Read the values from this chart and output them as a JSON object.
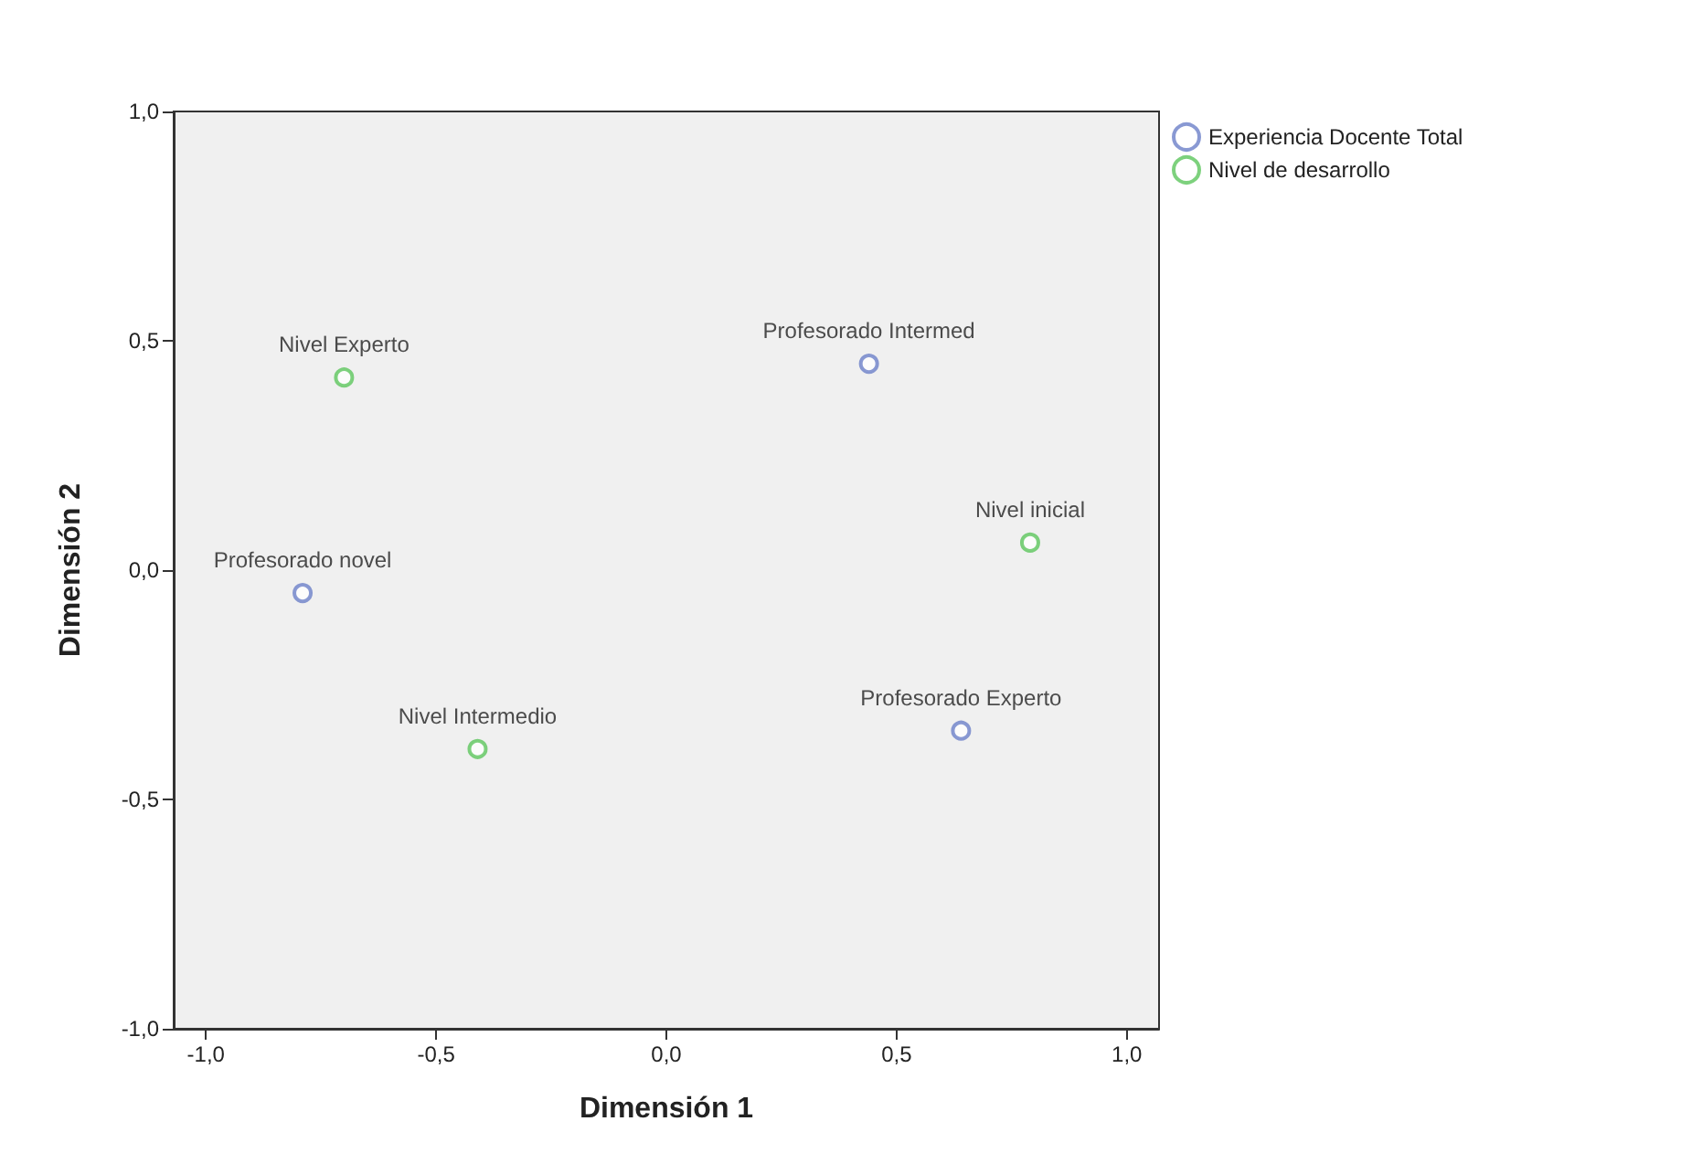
{
  "chart_data": {
    "type": "scatter",
    "xlabel": "Dimensión 1",
    "ylabel": "Dimensión 2",
    "xlim": [
      -1.07,
      1.07
    ],
    "ylim": [
      -1,
      1
    ],
    "xticks": [
      {
        "value": -1,
        "label": "-1,0"
      },
      {
        "value": -0.5,
        "label": "-0,5"
      },
      {
        "value": 0,
        "label": "0,0"
      },
      {
        "value": 0.5,
        "label": "0,5"
      },
      {
        "value": 1,
        "label": "1,0"
      }
    ],
    "yticks": [
      {
        "value": -1,
        "label": "-1,0"
      },
      {
        "value": -0.5,
        "label": "-0,5"
      },
      {
        "value": 0,
        "label": "0,0"
      },
      {
        "value": 0.5,
        "label": "0,5"
      },
      {
        "value": 1,
        "label": "1,0"
      }
    ],
    "series": [
      {
        "name": "Experiencia Docente Total",
        "color": "#6b7fc8",
        "x": [
          -0.79,
          0.44,
          0.64
        ],
        "values": [
          -0.05,
          0.45,
          -0.35
        ]
      },
      {
        "name": "Nivel de desarrollo",
        "color": "#5cc65c",
        "x": [
          -0.7,
          0.79,
          -0.41
        ],
        "values": [
          0.42,
          0.06,
          -0.39
        ]
      }
    ],
    "annotations": [
      {
        "text": "Profesorado novel",
        "x": -0.79,
        "y": -0.05
      },
      {
        "text": "Profesorado Intermed",
        "x": 0.44,
        "y": 0.45
      },
      {
        "text": "Profesorado Experto",
        "x": 0.64,
        "y": -0.35
      },
      {
        "text": "Nivel Experto",
        "x": -0.7,
        "y": 0.42
      },
      {
        "text": "Nivel inicial",
        "x": 0.79,
        "y": 0.06
      },
      {
        "text": "Nivel Intermedio",
        "x": -0.41,
        "y": -0.39
      }
    ],
    "legend": "top right",
    "grid": false,
    "marker": "circle"
  }
}
